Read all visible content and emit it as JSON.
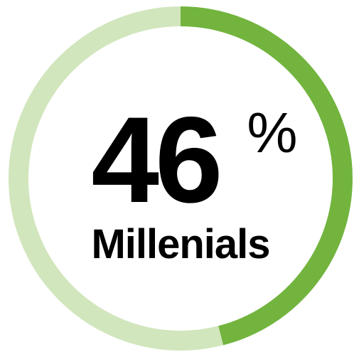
{
  "chart_data": {
    "type": "pie",
    "style": "donut",
    "series": [
      {
        "value": 46,
        "color": "#72b43e"
      },
      {
        "value": 54,
        "color": "#d2e6bd"
      }
    ],
    "center_value": "46",
    "center_unit": "%",
    "center_label": "Millenials"
  },
  "colors": {
    "accent": "#72b43e",
    "track": "#d2e6bd",
    "background": "#ffffff"
  }
}
